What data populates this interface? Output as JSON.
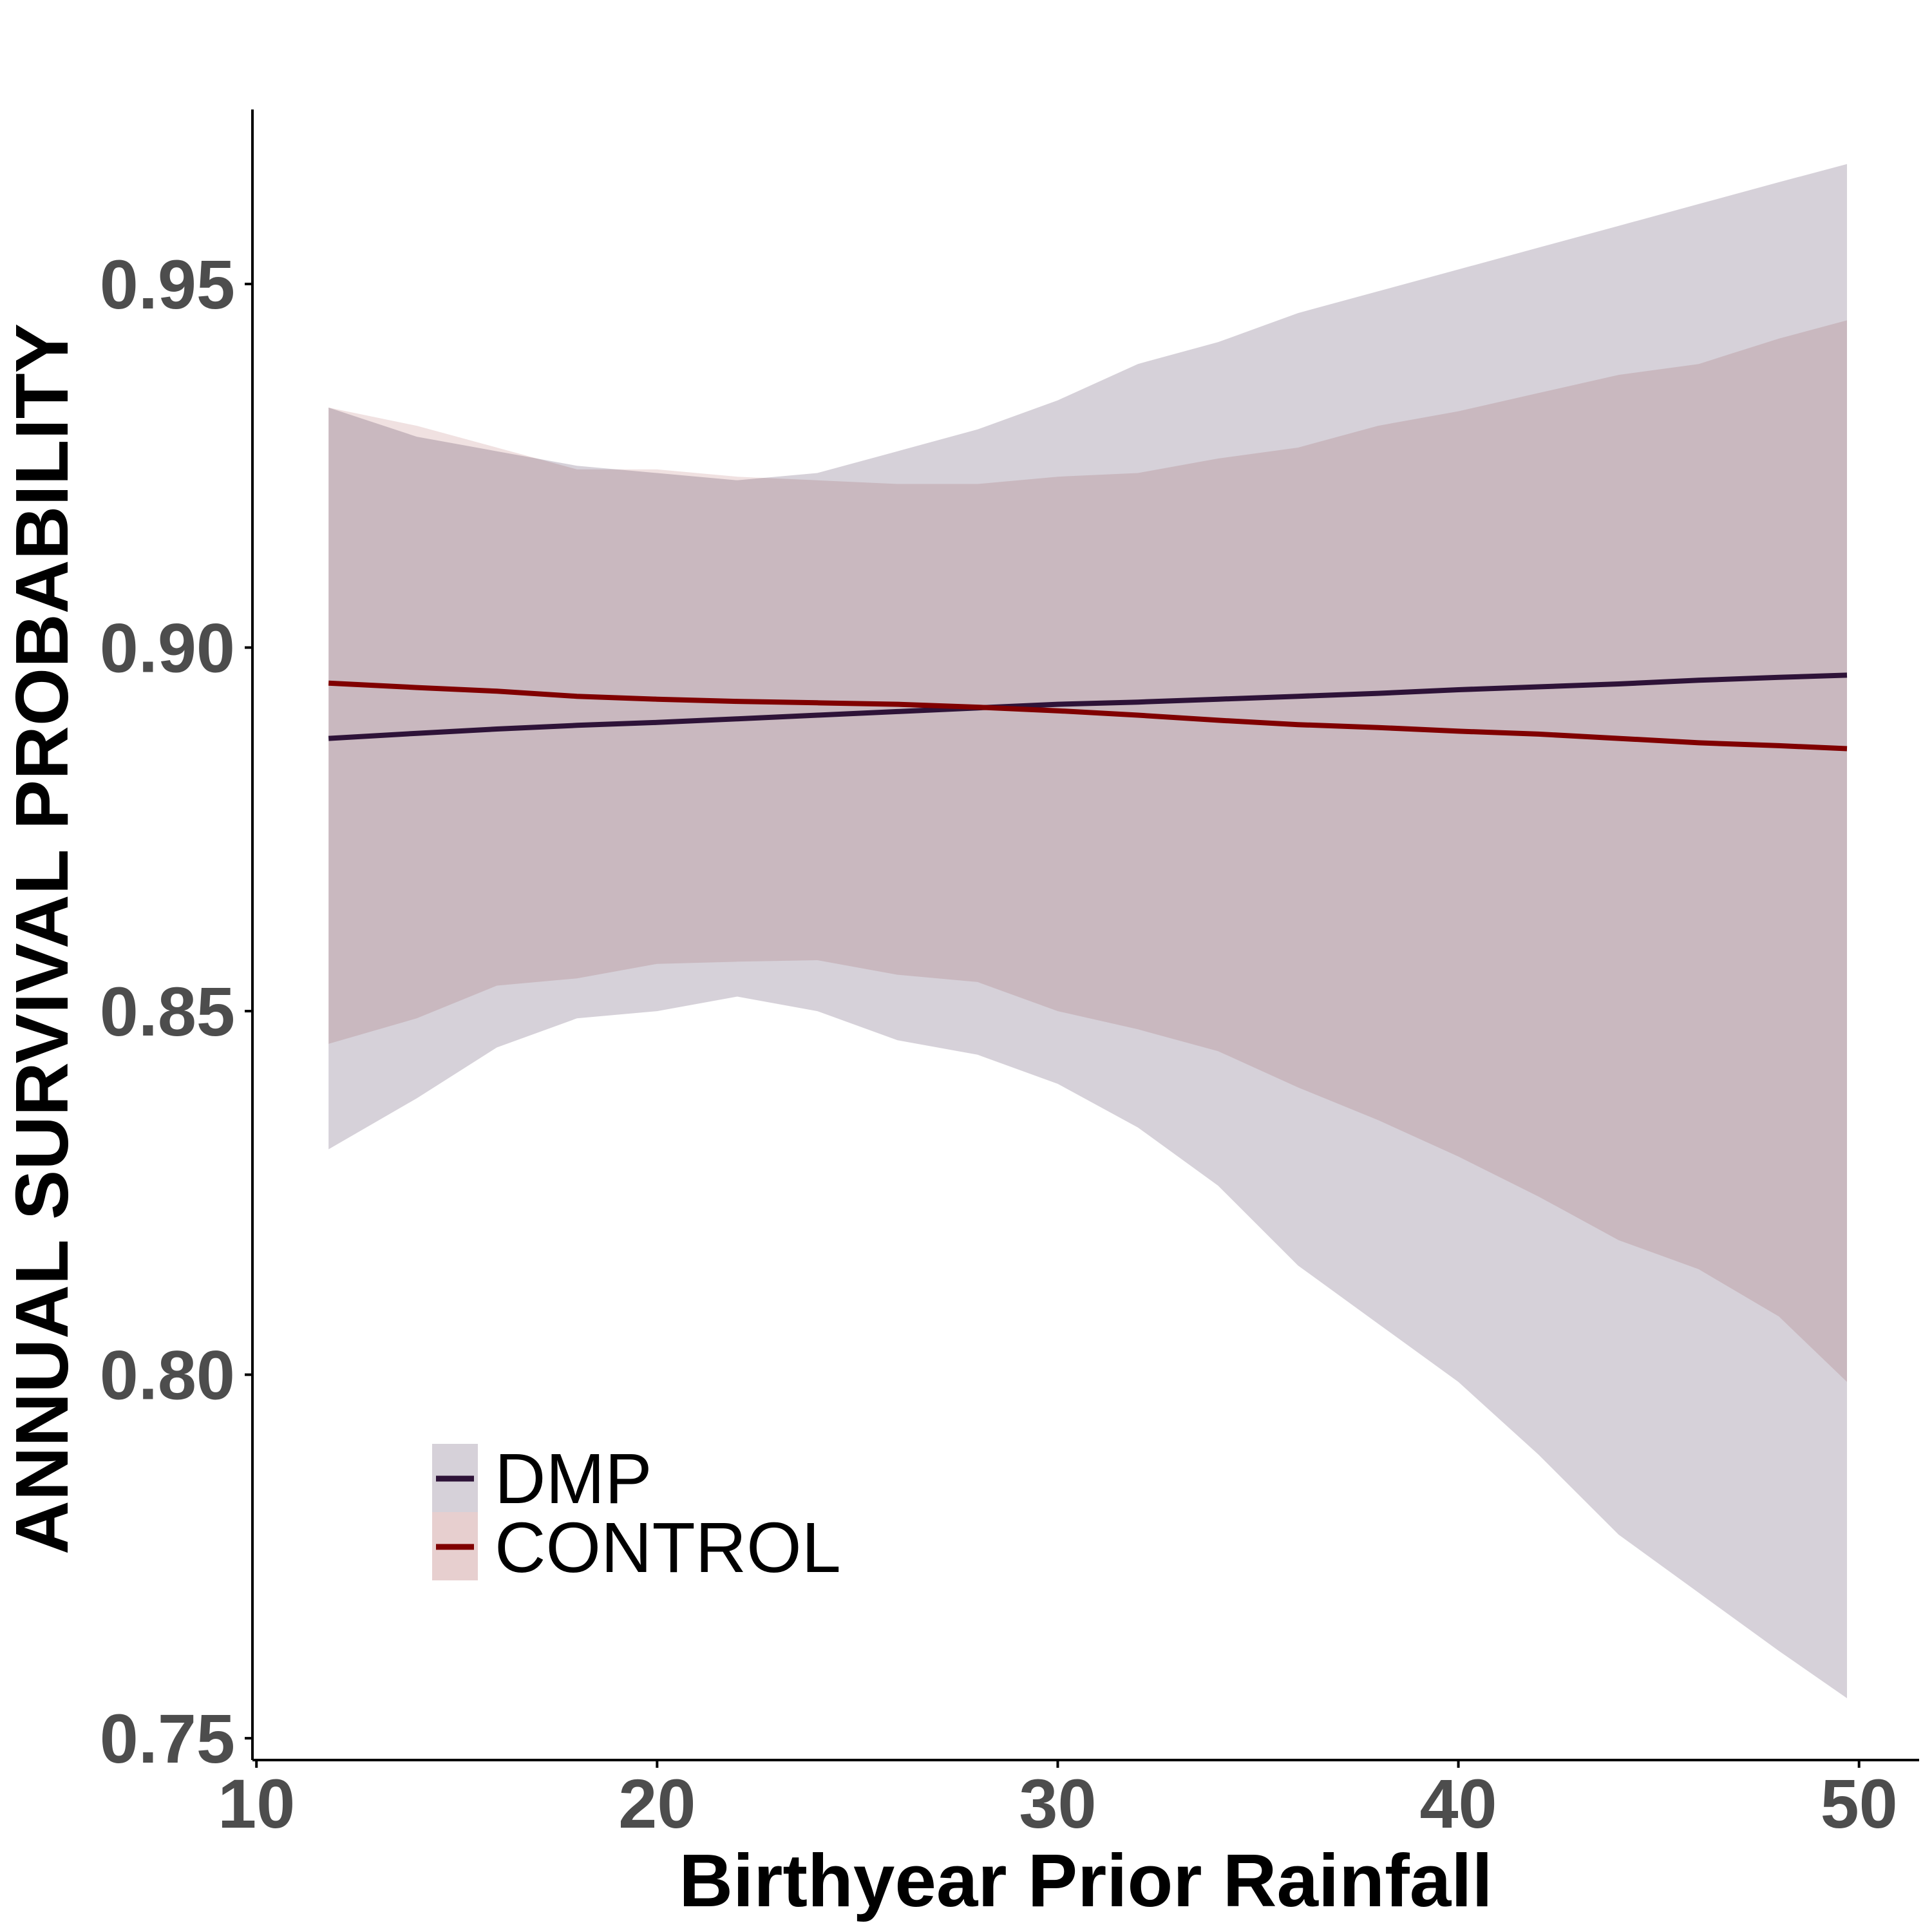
{
  "chart_data": {
    "type": "line",
    "title": "",
    "xlabel": "Birthyear Prior Rainfall",
    "ylabel": "ANNUAL SURVIVAL PROBABILITY",
    "xlim": [
      9.9,
      51.5
    ],
    "ylim": [
      0.747,
      0.974
    ],
    "x_ticks": [
      10,
      20,
      30,
      40,
      50
    ],
    "x_tick_labels": [
      "10",
      "20",
      "30",
      "40",
      "50"
    ],
    "y_ticks": [
      0.75,
      0.8,
      0.85,
      0.9,
      0.95
    ],
    "y_tick_labels": [
      "0.75",
      "0.80",
      "0.85",
      "0.90",
      "0.95"
    ],
    "grid": false,
    "legend_position": "bottom-left",
    "series": [
      {
        "name": "DMP",
        "line_color": "#2e1338",
        "ribbon_color": "#d6d1d9",
        "x": [
          11.8,
          14,
          16,
          18,
          20,
          22,
          24,
          26,
          28,
          30,
          32,
          34,
          36,
          38,
          40,
          42,
          44,
          46,
          48,
          49.7
        ],
        "y": [
          0.8875,
          0.8882,
          0.8888,
          0.8893,
          0.8897,
          0.8902,
          0.8907,
          0.8912,
          0.8917,
          0.8922,
          0.8925,
          0.8929,
          0.8933,
          0.8937,
          0.8942,
          0.8946,
          0.895,
          0.8955,
          0.8959,
          0.8962
        ],
        "lower": [
          0.831,
          0.838,
          0.845,
          0.849,
          0.85,
          0.852,
          0.85,
          0.846,
          0.844,
          0.84,
          0.834,
          0.826,
          0.815,
          0.807,
          0.799,
          0.789,
          0.778,
          0.77,
          0.762,
          0.7555
        ],
        "upper": [
          0.933,
          0.929,
          0.927,
          0.925,
          0.924,
          0.923,
          0.924,
          0.927,
          0.93,
          0.934,
          0.939,
          0.942,
          0.946,
          0.949,
          0.952,
          0.955,
          0.958,
          0.961,
          0.964,
          0.9665
        ]
      },
      {
        "name": "CONTROL",
        "line_color": "#800000",
        "ribbon_color": "#e7cfcf",
        "x": [
          11.8,
          14,
          16,
          18,
          20,
          22,
          24,
          26,
          28,
          30,
          32,
          34,
          36,
          38,
          40,
          42,
          44,
          46,
          48,
          49.7
        ],
        "y": [
          0.8951,
          0.8945,
          0.894,
          0.8933,
          0.8929,
          0.8926,
          0.8924,
          0.8922,
          0.8918,
          0.8913,
          0.8907,
          0.89,
          0.8894,
          0.889,
          0.8885,
          0.8881,
          0.8875,
          0.8869,
          0.8865,
          0.8861
        ],
        "lower": [
          0.8455,
          0.849,
          0.8535,
          0.8545,
          0.8565,
          0.8568,
          0.857,
          0.855,
          0.854,
          0.85,
          0.8475,
          0.8445,
          0.8395,
          0.835,
          0.83,
          0.8245,
          0.8185,
          0.8145,
          0.808,
          0.799
        ],
        "upper": [
          0.933,
          0.9305,
          0.9275,
          0.9245,
          0.9245,
          0.9235,
          0.923,
          0.9225,
          0.9225,
          0.9235,
          0.924,
          0.926,
          0.9275,
          0.9305,
          0.9325,
          0.935,
          0.9375,
          0.939,
          0.9425,
          0.945
        ]
      }
    ],
    "legend_entries": [
      {
        "label": "DMP",
        "series": 0
      },
      {
        "label": "CONTROL",
        "series": 1
      }
    ]
  }
}
